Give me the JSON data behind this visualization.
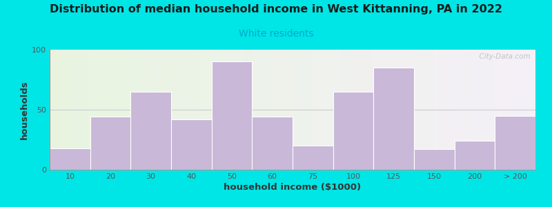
{
  "title": "Distribution of median household income in West Kittanning, PA in 2022",
  "subtitle": "White residents",
  "xlabel": "household income ($1000)",
  "ylabel": "households",
  "bar_color": "#c9b8d8",
  "bar_edge_color": "#ffffff",
  "title_color": "#1a1a1a",
  "subtitle_color": "#00aacc",
  "background_outer": "#00e5e5",
  "background_inner_left": "#e8f5e0",
  "background_inner_right": "#f5f0f8",
  "watermark": "  City-Data.com",
  "categories": [
    "10",
    "20",
    "30",
    "40",
    "50",
    "60",
    "75",
    "100",
    "125",
    "150",
    "200",
    "> 200"
  ],
  "values": [
    18,
    44,
    65,
    42,
    90,
    44,
    20,
    65,
    85,
    17,
    24,
    45
  ],
  "ylim": [
    0,
    100
  ],
  "yticks": [
    0,
    50,
    100
  ],
  "bin_edges": [
    0,
    1,
    2,
    3,
    4,
    5,
    6,
    7,
    8,
    9,
    10,
    11,
    12
  ]
}
